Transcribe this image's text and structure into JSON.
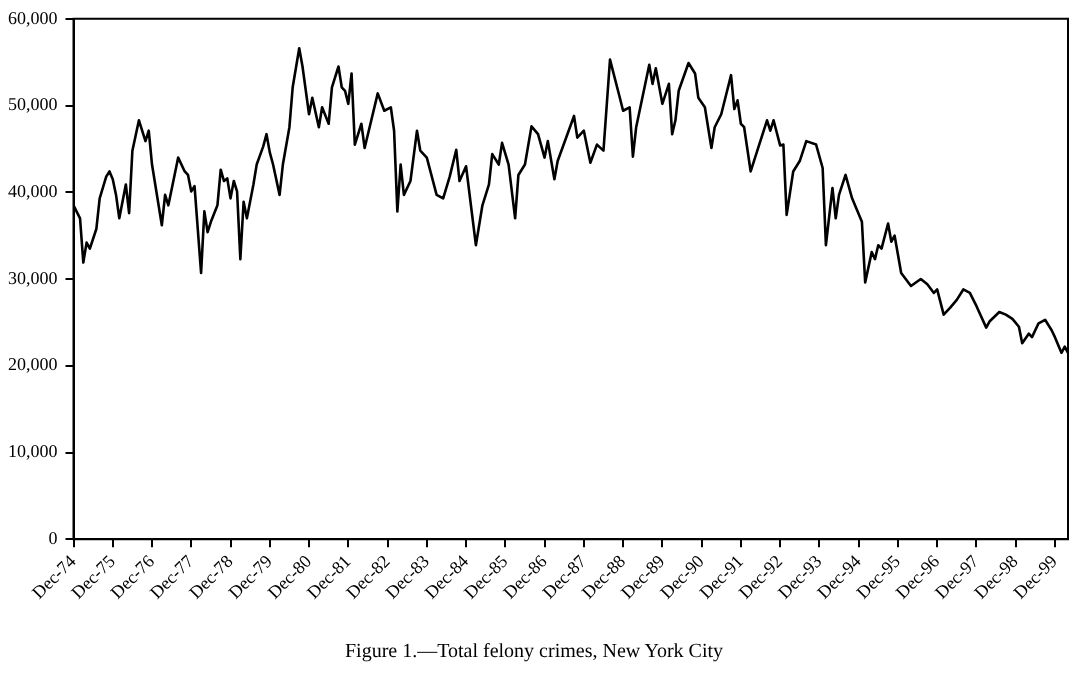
{
  "chart_data": {
    "type": "line",
    "title": "Figure 1.—Total felony crimes, New York City",
    "xlim": [
      "1974-12",
      "2000-04"
    ],
    "xticks": [
      {
        "value": "1974-12",
        "label": "Dec-74"
      },
      {
        "value": "1975-12",
        "label": "Dec-75"
      },
      {
        "value": "1976-12",
        "label": "Dec-76"
      },
      {
        "value": "1977-12",
        "label": "Dec-77"
      },
      {
        "value": "1978-12",
        "label": "Dec-78"
      },
      {
        "value": "1979-12",
        "label": "Dec-79"
      },
      {
        "value": "1980-12",
        "label": "Dec-80"
      },
      {
        "value": "1981-12",
        "label": "Dec-81"
      },
      {
        "value": "1982-12",
        "label": "Dec-82"
      },
      {
        "value": "1983-12",
        "label": "Dec-83"
      },
      {
        "value": "1984-12",
        "label": "Dec-84"
      },
      {
        "value": "1985-12",
        "label": "Dec-85"
      },
      {
        "value": "1986-12",
        "label": "Dec-86"
      },
      {
        "value": "1987-12",
        "label": "Dec-87"
      },
      {
        "value": "1988-12",
        "label": "Dec-88"
      },
      {
        "value": "1989-12",
        "label": "Dec-89"
      },
      {
        "value": "1990-12",
        "label": "Dec-90"
      },
      {
        "value": "1991-12",
        "label": "Dec-91"
      },
      {
        "value": "1992-12",
        "label": "Dec-92"
      },
      {
        "value": "1993-12",
        "label": "Dec-93"
      },
      {
        "value": "1994-12",
        "label": "Dec-94"
      },
      {
        "value": "1995-12",
        "label": "Dec-95"
      },
      {
        "value": "1996-12",
        "label": "Dec-96"
      },
      {
        "value": "1997-12",
        "label": "Dec-97"
      },
      {
        "value": "1998-12",
        "label": "Dec-98"
      },
      {
        "value": "1999-12",
        "label": "Dec-99"
      }
    ],
    "ylim": [
      0,
      60000
    ],
    "yticks": [
      {
        "value": 0,
        "label": "0"
      },
      {
        "value": 10000,
        "label": "10,000"
      },
      {
        "value": 20000,
        "label": "20,000"
      },
      {
        "value": 30000,
        "label": "30,000"
      },
      {
        "value": 40000,
        "label": "40,000"
      },
      {
        "value": 50000,
        "label": "50,000"
      },
      {
        "value": 60000,
        "label": "60,000"
      }
    ],
    "x": [
      "1974-12",
      "1975-02",
      "1975-03",
      "1975-04",
      "1975-05",
      "1975-07",
      "1975-08",
      "1975-10",
      "1975-11",
      "1975-12",
      "1976-01",
      "1976-02",
      "1976-04",
      "1976-05",
      "1976-06",
      "1976-08",
      "1976-10",
      "1976-11",
      "1976-12",
      "1977-03",
      "1977-04",
      "1977-05",
      "1977-08",
      "1977-10",
      "1977-11",
      "1977-12",
      "1978-01",
      "1978-03",
      "1978-04",
      "1978-05",
      "1978-06",
      "1978-08",
      "1978-09",
      "1978-10",
      "1978-11",
      "1978-12",
      "1979-01",
      "1979-02",
      "1979-03",
      "1979-04",
      "1979-05",
      "1979-07",
      "1979-08",
      "1979-10",
      "1979-11",
      "1979-12",
      "1980-01",
      "1980-03",
      "1980-04",
      "1980-06",
      "1980-07",
      "1980-09",
      "1980-10",
      "1980-12",
      "1981-01",
      "1981-03",
      "1981-04",
      "1981-06",
      "1981-07",
      "1981-09",
      "1981-10",
      "1981-11",
      "1981-12",
      "1982-01",
      "1982-02",
      "1982-04",
      "1982-05",
      "1982-09",
      "1982-11",
      "1983-01",
      "1983-02",
      "1983-03",
      "1983-04",
      "1983-05",
      "1983-07",
      "1983-09",
      "1983-10",
      "1983-12",
      "1984-03",
      "1984-05",
      "1984-07",
      "1984-09",
      "1984-10",
      "1984-12",
      "1985-03",
      "1985-05",
      "1985-07",
      "1985-08",
      "1985-10",
      "1985-11",
      "1986-01",
      "1986-03",
      "1986-04",
      "1986-06",
      "1986-08",
      "1986-10",
      "1986-12",
      "1987-01",
      "1987-03",
      "1987-04",
      "1987-09",
      "1987-10",
      "1987-12",
      "1988-02",
      "1988-04",
      "1988-06",
      "1988-08",
      "1988-11",
      "1988-12",
      "1989-02",
      "1989-03",
      "1989-04",
      "1989-08",
      "1989-09",
      "1989-10",
      "1989-12",
      "1990-02",
      "1990-03",
      "1990-04",
      "1990-05",
      "1990-08",
      "1990-10",
      "1990-11",
      "1991-01",
      "1991-03",
      "1991-04",
      "1991-06",
      "1991-09",
      "1991-10",
      "1991-11",
      "1991-12",
      "1992-01",
      "1992-03",
      "1992-04",
      "1992-08",
      "1992-09",
      "1992-10",
      "1992-12",
      "1993-01",
      "1993-02",
      "1993-04",
      "1993-06",
      "1993-08",
      "1993-11",
      "1994-01",
      "1994-02",
      "1994-04",
      "1994-05",
      "1994-06",
      "1994-08",
      "1994-10",
      "1995-01",
      "1995-02",
      "1995-04",
      "1995-05",
      "1995-06",
      "1995-07",
      "1995-09",
      "1995-10",
      "1995-11",
      "1996-01",
      "1996-04",
      "1996-07",
      "1996-09",
      "1996-11",
      "1996-12",
      "1997-02",
      "1997-04",
      "1997-06",
      "1997-08",
      "1997-10",
      "1997-12",
      "1998-03",
      "1998-04",
      "1998-07",
      "1998-09",
      "1998-11",
      "1999-01",
      "1999-02",
      "1999-04",
      "1999-05",
      "1999-07",
      "1999-09",
      "1999-11",
      "1999-12",
      "2000-02",
      "2000-03",
      "2000-04"
    ],
    "series": [
      {
        "color": "#000000",
        "values": [
          38500,
          37000,
          31900,
          34200,
          33500,
          35800,
          39300,
          41800,
          42400,
          41500,
          39700,
          37000,
          40900,
          37600,
          44800,
          48300,
          45900,
          47100,
          43200,
          36200,
          39700,
          38500,
          44000,
          42400,
          42000,
          40100,
          40700,
          30700,
          37800,
          35400,
          36600,
          38500,
          42600,
          41300,
          41600,
          39300,
          41300,
          40100,
          32300,
          38900,
          37000,
          40900,
          43200,
          45300,
          46700,
          44600,
          43200,
          39700,
          43200,
          47500,
          52100,
          56600,
          54500,
          49000,
          50900,
          47500,
          49800,
          47900,
          52100,
          54500,
          52100,
          51700,
          50200,
          53700,
          45500,
          47900,
          45100,
          51400,
          49400,
          49800,
          47100,
          37800,
          43200,
          39700,
          41300,
          47100,
          44800,
          44000,
          39700,
          39300,
          41800,
          44900,
          41300,
          43000,
          33900,
          38500,
          40900,
          44400,
          43200,
          45700,
          43200,
          37000,
          42000,
          43200,
          47600,
          46700,
          44000,
          45900,
          41500,
          43600,
          48800,
          46300,
          47100,
          43400,
          45500,
          44800,
          55300,
          50900,
          49400,
          49800,
          44100,
          47500,
          54700,
          52500,
          54300,
          50200,
          52500,
          46700,
          48300,
          51700,
          54900,
          53700,
          50900,
          49800,
          45100,
          47500,
          49000,
          53500,
          49600,
          50600,
          47900,
          47500,
          42400,
          43600,
          48300,
          47100,
          48300,
          45400,
          45500,
          37400,
          42400,
          43600,
          45900,
          45500,
          42800,
          33900,
          40500,
          37000,
          39700,
          42000,
          39300,
          36600,
          29600,
          33100,
          32300,
          33900,
          33500,
          36400,
          34300,
          35000,
          30700,
          29200,
          30000,
          29400,
          28400,
          28800,
          25900,
          26700,
          27600,
          28800,
          28400,
          26900,
          24400,
          25100,
          26200,
          25900,
          25400,
          24500,
          22600,
          23700,
          23300,
          24900,
          25300,
          24100,
          23300,
          21500,
          22200,
          21500
        ]
      }
    ]
  }
}
